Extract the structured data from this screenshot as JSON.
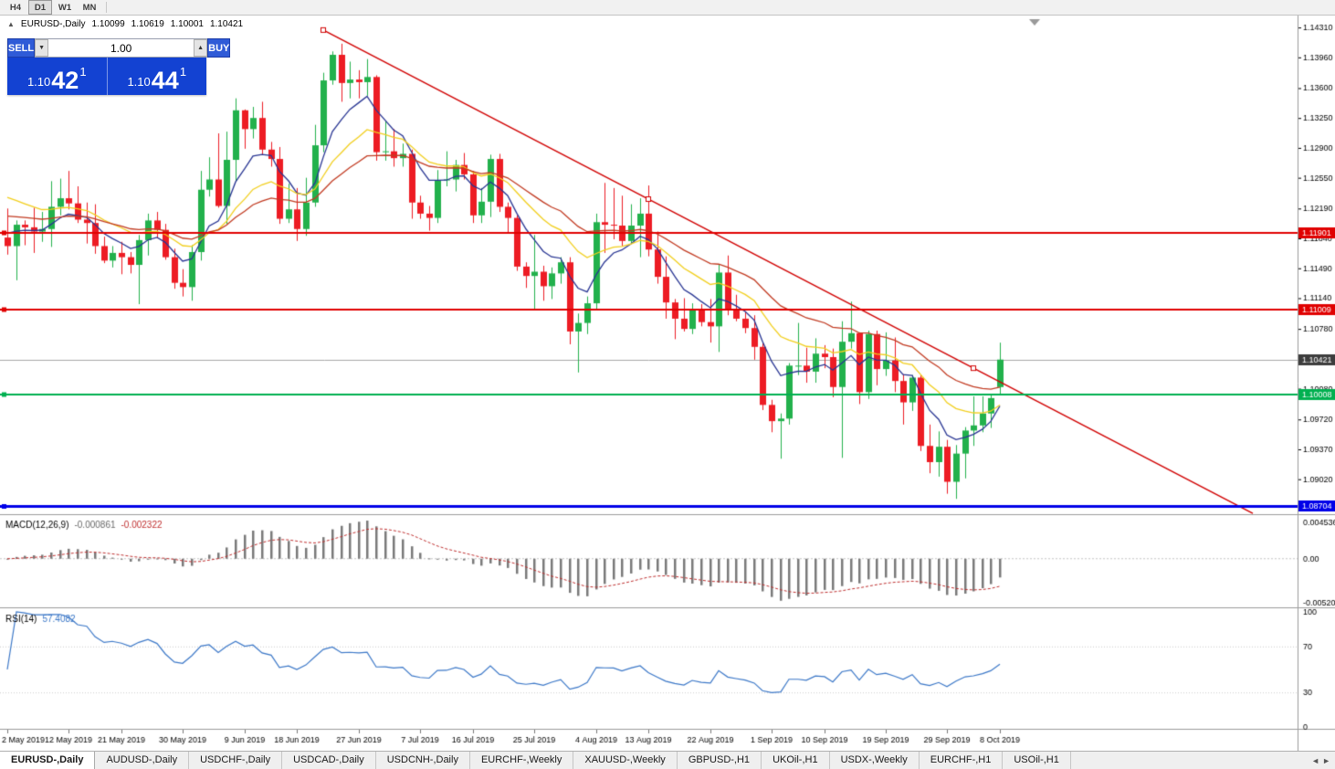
{
  "toolbar": {
    "timeframes": [
      {
        "label": "H4",
        "active": false
      },
      {
        "label": "D1",
        "active": true
      },
      {
        "label": "W1",
        "active": false
      },
      {
        "label": "MN",
        "active": false
      }
    ]
  },
  "info_line": {
    "symbol": "EURUSD-,Daily",
    "open": "1.10099",
    "high": "1.10619",
    "low": "1.10001",
    "close": "1.10421"
  },
  "quote_panel": {
    "collapse_icon": "▲",
    "sell_label": "SELL",
    "buy_label": "BUY",
    "volume": "1.00",
    "vol_down_icon": "▼",
    "vol_up_icon": "▲",
    "sell_price": {
      "prefix": "1.10",
      "big": "42",
      "sup": "1"
    },
    "buy_price": {
      "prefix": "1.10",
      "big": "44",
      "sup": "1"
    }
  },
  "chart_data": {
    "type": "candlestick",
    "symbol": "EURUSD-",
    "timeframe": "Daily",
    "colors": {
      "up": "#22b14c",
      "down": "#ed1c24",
      "trend": "#d10000",
      "macd_hist": "#7a7a7a",
      "macd_signal": "#c03030",
      "rsi": "#3c78c8"
    },
    "y_ticks": [
      "1.14310",
      "1.13960",
      "1.13600",
      "1.13250",
      "1.12900",
      "1.12550",
      "1.12190",
      "1.11840",
      "1.11490",
      "1.11140",
      "1.10780",
      "1.10430",
      "1.10080",
      "1.09720",
      "1.09370",
      "1.09020"
    ],
    "x_labels": [
      {
        "text": "2 May 2019",
        "i": 0
      },
      {
        "text": "12 May 2019",
        "i": 7
      },
      {
        "text": "21 May 2019",
        "i": 13
      },
      {
        "text": "30 May 2019",
        "i": 20
      },
      {
        "text": "9 Jun 2019",
        "i": 27
      },
      {
        "text": "18 Jun 2019",
        "i": 33
      },
      {
        "text": "27 Jun 2019",
        "i": 40
      },
      {
        "text": "7 Jul 2019",
        "i": 47
      },
      {
        "text": "16 Jul 2019",
        "i": 53
      },
      {
        "text": "25 Jul 2019",
        "i": 60
      },
      {
        "text": "4 Aug 2019",
        "i": 67
      },
      {
        "text": "13 Aug 2019",
        "i": 73
      },
      {
        "text": "22 Aug 2019",
        "i": 80
      },
      {
        "text": "1 Sep 2019",
        "i": 87
      },
      {
        "text": "10 Sep 2019",
        "i": 93
      },
      {
        "text": "19 Sep 2019",
        "i": 100
      },
      {
        "text": "29 Sep 2019",
        "i": 107
      },
      {
        "text": "8 Oct 2019",
        "i": 113
      }
    ],
    "candles": [
      [
        1.1185,
        1.1219,
        1.1165,
        1.1175
      ],
      [
        1.1175,
        1.1205,
        1.1135,
        1.12
      ],
      [
        1.12,
        1.1205,
        1.1176,
        1.1197
      ],
      [
        1.1197,
        1.122,
        1.1167,
        1.1192
      ],
      [
        1.1192,
        1.1215,
        1.118,
        1.1195
      ],
      [
        1.1195,
        1.1251,
        1.1174,
        1.1221
      ],
      [
        1.1221,
        1.1254,
        1.1211,
        1.1231
      ],
      [
        1.1231,
        1.1263,
        1.1218,
        1.1225
      ],
      [
        1.1225,
        1.1245,
        1.1202,
        1.1206
      ],
      [
        1.1206,
        1.1226,
        1.1178,
        1.1202
      ],
      [
        1.1202,
        1.1224,
        1.1166,
        1.1175
      ],
      [
        1.1175,
        1.1186,
        1.1155,
        1.1158
      ],
      [
        1.1158,
        1.1175,
        1.115,
        1.1167
      ],
      [
        1.1167,
        1.118,
        1.1142,
        1.1162
      ],
      [
        1.1162,
        1.1168,
        1.1143,
        1.1153
      ],
      [
        1.1153,
        1.1188,
        1.1107,
        1.1182
      ],
      [
        1.1182,
        1.1213,
        1.1164,
        1.1205
      ],
      [
        1.1205,
        1.1215,
        1.1184,
        1.1194
      ],
      [
        1.1194,
        1.1201,
        1.1159,
        1.1162
      ],
      [
        1.1162,
        1.1172,
        1.1125,
        1.1132
      ],
      [
        1.1132,
        1.1148,
        1.1116,
        1.1127
      ],
      [
        1.1127,
        1.1176,
        1.1111,
        1.1168
      ],
      [
        1.1168,
        1.1263,
        1.1158,
        1.1241
      ],
      [
        1.1241,
        1.1279,
        1.1233,
        1.1253
      ],
      [
        1.1253,
        1.1307,
        1.122,
        1.1222
      ],
      [
        1.1222,
        1.1309,
        1.1201,
        1.1276
      ],
      [
        1.1276,
        1.1348,
        1.1251,
        1.1334
      ],
      [
        1.1334,
        1.1335,
        1.1289,
        1.1312
      ],
      [
        1.1312,
        1.1338,
        1.1301,
        1.1325
      ],
      [
        1.1325,
        1.1344,
        1.1282,
        1.1288
      ],
      [
        1.1288,
        1.1297,
        1.1268,
        1.1277
      ],
      [
        1.1277,
        1.1291,
        1.1201,
        1.1207
      ],
      [
        1.1207,
        1.1248,
        1.1202,
        1.1218
      ],
      [
        1.1218,
        1.1243,
        1.1181,
        1.1195
      ],
      [
        1.1195,
        1.1255,
        1.1187,
        1.1226
      ],
      [
        1.1226,
        1.1317,
        1.1221,
        1.1293
      ],
      [
        1.1293,
        1.1378,
        1.1285,
        1.1369
      ],
      [
        1.1369,
        1.1403,
        1.1364,
        1.1399
      ],
      [
        1.1399,
        1.1412,
        1.1344,
        1.1366
      ],
      [
        1.1366,
        1.1391,
        1.1348,
        1.137
      ],
      [
        1.137,
        1.1381,
        1.1348,
        1.1367
      ],
      [
        1.1367,
        1.1394,
        1.1351,
        1.1373
      ],
      [
        1.1373,
        1.1375,
        1.1275,
        1.1285
      ],
      [
        1.1285,
        1.1322,
        1.1275,
        1.1286
      ],
      [
        1.1286,
        1.1312,
        1.1268,
        1.1278
      ],
      [
        1.1278,
        1.1295,
        1.1268,
        1.1283
      ],
      [
        1.1283,
        1.1288,
        1.1207,
        1.1226
      ],
      [
        1.1226,
        1.1234,
        1.1207,
        1.1213
      ],
      [
        1.1213,
        1.1222,
        1.1193,
        1.1208
      ],
      [
        1.1208,
        1.1264,
        1.1202,
        1.1252
      ],
      [
        1.1252,
        1.1286,
        1.1245,
        1.1253
      ],
      [
        1.1253,
        1.1276,
        1.1239,
        1.127
      ],
      [
        1.127,
        1.1284,
        1.1253,
        1.1259
      ],
      [
        1.1259,
        1.1263,
        1.1202,
        1.1211
      ],
      [
        1.1211,
        1.1243,
        1.1202,
        1.1227
      ],
      [
        1.1227,
        1.1282,
        1.1209,
        1.1277
      ],
      [
        1.1277,
        1.1283,
        1.1215,
        1.1221
      ],
      [
        1.1221,
        1.1226,
        1.119,
        1.1208
      ],
      [
        1.1208,
        1.1211,
        1.1146,
        1.1151
      ],
      [
        1.1151,
        1.1156,
        1.1126,
        1.114
      ],
      [
        1.114,
        1.1188,
        1.1101,
        1.1145
      ],
      [
        1.1145,
        1.1152,
        1.1111,
        1.1128
      ],
      [
        1.1128,
        1.115,
        1.1113,
        1.1143
      ],
      [
        1.1143,
        1.1162,
        1.1131,
        1.1156
      ],
      [
        1.1156,
        1.1162,
        1.106,
        1.1075
      ],
      [
        1.1075,
        1.1096,
        1.1027,
        1.1085
      ],
      [
        1.1085,
        1.1116,
        1.1072,
        1.1108
      ],
      [
        1.1108,
        1.1213,
        1.1101,
        1.1203
      ],
      [
        1.1203,
        1.1249,
        1.1167,
        1.12
      ],
      [
        1.12,
        1.1243,
        1.1183,
        1.1199
      ],
      [
        1.1199,
        1.1234,
        1.1175,
        1.1181
      ],
      [
        1.1181,
        1.1224,
        1.1178,
        1.1199
      ],
      [
        1.1199,
        1.1231,
        1.1162,
        1.1213
      ],
      [
        1.1213,
        1.1246,
        1.1163,
        1.1171
      ],
      [
        1.1171,
        1.1192,
        1.1131,
        1.1139
      ],
      [
        1.1139,
        1.1163,
        1.109,
        1.1109
      ],
      [
        1.1109,
        1.1113,
        1.1066,
        1.109
      ],
      [
        1.109,
        1.1114,
        1.1075,
        1.1078
      ],
      [
        1.1078,
        1.1108,
        1.1072,
        1.11
      ],
      [
        1.11,
        1.1107,
        1.1081,
        1.1086
      ],
      [
        1.1086,
        1.1113,
        1.1062,
        1.1081
      ],
      [
        1.1081,
        1.1153,
        1.1051,
        1.1144
      ],
      [
        1.1144,
        1.1164,
        1.1094,
        1.1101
      ],
      [
        1.1101,
        1.1118,
        1.1087,
        1.109
      ],
      [
        1.109,
        1.1098,
        1.1073,
        1.1079
      ],
      [
        1.1079,
        1.1094,
        1.1042,
        1.1057
      ],
      [
        1.1057,
        1.1061,
        1.0983,
        1.0989
      ],
      [
        1.0989,
        1.0995,
        1.0957,
        1.097
      ],
      [
        1.097,
        1.0979,
        1.0926,
        1.0973
      ],
      [
        1.0973,
        1.1038,
        1.0966,
        1.1035
      ],
      [
        1.1035,
        1.1085,
        1.1024,
        1.1035
      ],
      [
        1.1035,
        1.1056,
        1.1015,
        1.1028
      ],
      [
        1.1028,
        1.1067,
        1.1015,
        1.1049
      ],
      [
        1.1049,
        1.1059,
        1.1032,
        1.1045
      ],
      [
        1.1045,
        1.1055,
        1.0998,
        1.101
      ],
      [
        1.101,
        1.1087,
        1.0927,
        1.1063
      ],
      [
        1.1063,
        1.111,
        1.1055,
        1.1073
      ],
      [
        1.1073,
        1.1074,
        1.099,
        1.1004
      ],
      [
        1.1004,
        1.1076,
        1.0996,
        1.1072
      ],
      [
        1.1072,
        1.1076,
        1.1012,
        1.1031
      ],
      [
        1.1031,
        1.1074,
        1.1023,
        1.1041
      ],
      [
        1.1041,
        1.1068,
        1.1004,
        1.1017
      ],
      [
        1.1017,
        1.1025,
        1.0966,
        1.0992
      ],
      [
        1.0992,
        1.1024,
        1.0982,
        1.1021
      ],
      [
        1.1021,
        1.1024,
        1.0935,
        1.0941
      ],
      [
        1.0941,
        1.0966,
        1.0909,
        1.0922
      ],
      [
        1.0922,
        1.0958,
        1.0905,
        1.094
      ],
      [
        1.094,
        1.0948,
        1.0885,
        1.0899
      ],
      [
        1.0899,
        1.0942,
        1.0879,
        1.0932
      ],
      [
        1.0932,
        1.0963,
        1.0903,
        1.0959
      ],
      [
        1.0959,
        1.0999,
        1.0941,
        1.0965
      ],
      [
        1.0965,
        1.0999,
        1.0957,
        1.0979
      ],
      [
        1.0979,
        1.1002,
        1.0962,
        1.0997
      ],
      [
        1.10099,
        1.10619,
        1.10001,
        1.10421
      ]
    ],
    "moving_averages": [
      {
        "period": 7,
        "color": "#283593",
        "seed": 1.119
      },
      {
        "period": 16,
        "color": "#f2cf1d",
        "seed": 1.1232
      },
      {
        "period": 28,
        "color": "#c23b22",
        "seed": 1.121
      }
    ],
    "price_lines": [
      {
        "value": 1.11901,
        "label": "1.11901",
        "color": "#e00000",
        "width": 2
      },
      {
        "value": 1.11009,
        "label": "1.11009",
        "color": "#e00000",
        "width": 2
      },
      {
        "value": 1.10008,
        "label": "1.10008",
        "color": "#00b050",
        "width": 2
      },
      {
        "value": 1.08704,
        "label": "1.08704",
        "color": "#0000e8",
        "width": 3
      }
    ],
    "bid_line": {
      "value": 1.10421,
      "label": "1.10421",
      "color": "#a8a8a8",
      "badge": "#3d3d3d"
    },
    "trendline": {
      "i1": 36,
      "p1": 1.1428,
      "i2": 110,
      "p2": 1.1032,
      "color": "#d10000",
      "ray": true
    },
    "macd": {
      "name": "MACD(12,26,9)",
      "value_main": "-0.000861",
      "value_signal": "-0.002322",
      "fast": 12,
      "slow": 26,
      "signal": 9,
      "scale_max": 0.004536,
      "scale_min": -0.005205,
      "axis_labels": [
        "0.004536",
        "0.00",
        "-0.005205"
      ]
    },
    "rsi": {
      "name": "RSI(14)",
      "value": "57.4082",
      "period": 14,
      "levels": [
        100,
        70,
        30,
        0
      ]
    }
  },
  "tabs": [
    {
      "label": "EURUSD-,Daily",
      "active": true
    },
    {
      "label": "AUDUSD-,Daily",
      "active": false
    },
    {
      "label": "USDCHF-,Daily",
      "active": false
    },
    {
      "label": "USDCAD-,Daily",
      "active": false
    },
    {
      "label": "USDCNH-,Daily",
      "active": false
    },
    {
      "label": "EURCHF-,Weekly",
      "active": false
    },
    {
      "label": "XAUUSD-,Weekly",
      "active": false
    },
    {
      "label": "GBPUSD-,H1",
      "active": false
    },
    {
      "label": "UKOil-,H1",
      "active": false
    },
    {
      "label": "USDX-,Weekly",
      "active": false
    },
    {
      "label": "EURCHF-,H1",
      "active": false
    },
    {
      "label": "USOil-,H1",
      "active": false
    }
  ],
  "tab_scroll": {
    "left": "◄",
    "right": "►"
  }
}
